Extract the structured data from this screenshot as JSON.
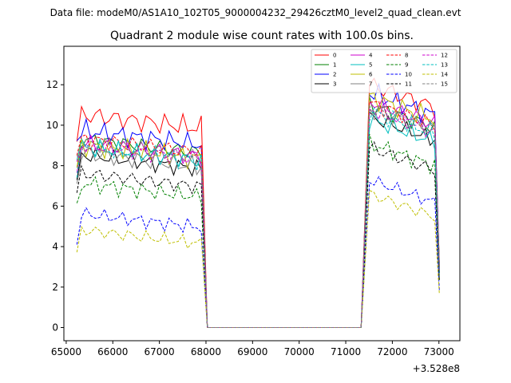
{
  "chart_data": {
    "type": "line",
    "suptitle": "Data file: modeM0/AS1A10_102T05_9000004232_29426cztM0_level2_quad_clean.evt",
    "title": "Quadrant 2 module wise count rates with 100.0s bins.",
    "xlabel": "",
    "ylabel": "",
    "x_offset_label": "+3.528e8",
    "xlim": [
      64950,
      73450
    ],
    "ylim": [
      -0.65,
      13.9
    ],
    "xticks": [
      65000,
      66000,
      67000,
      68000,
      69000,
      70000,
      71000,
      72000,
      73000
    ],
    "xtick_labels": [
      "65000",
      "66000",
      "67000",
      "68000",
      "69000",
      "70000",
      "71000",
      "72000",
      "73000"
    ],
    "yticks": [
      0,
      2,
      4,
      6,
      8,
      10,
      12
    ],
    "ytick_labels": [
      "0",
      "2",
      "4",
      "6",
      "8",
      "10",
      "12"
    ],
    "grid": false,
    "legend_location": "top-right",
    "legend_columns": 4,
    "segments": [
      {
        "start": 65230,
        "end": 67900,
        "n": 28
      },
      {
        "start": 71510,
        "end": 73010,
        "n": 16
      }
    ],
    "gap_x": [
      68030,
      71330
    ],
    "series": [
      {
        "name": "0",
        "color": "#ff0000",
        "dash": "solid",
        "levels": [
          10.2,
          11.3
        ],
        "jitter": 0.55
      },
      {
        "name": "1",
        "color": "#008000",
        "dash": "solid",
        "levels": [
          9.0,
          10.3
        ],
        "jitter": 0.45
      },
      {
        "name": "2",
        "color": "#0000ff",
        "dash": "solid",
        "levels": [
          9.4,
          10.9
        ],
        "jitter": 0.5
      },
      {
        "name": "3",
        "color": "#000000",
        "dash": "solid",
        "levels": [
          8.2,
          9.7
        ],
        "jitter": 0.4
      },
      {
        "name": "4",
        "color": "#cc00cc",
        "dash": "solid",
        "levels": [
          8.8,
          10.5
        ],
        "jitter": 0.5
      },
      {
        "name": "5",
        "color": "#00bfbf",
        "dash": "solid",
        "levels": [
          8.6,
          9.6
        ],
        "jitter": 0.45
      },
      {
        "name": "6",
        "color": "#bfbf00",
        "dash": "solid",
        "levels": [
          8.7,
          10.7
        ],
        "jitter": 0.5
      },
      {
        "name": "7",
        "color": "#808080",
        "dash": "solid",
        "levels": [
          8.3,
          10.2
        ],
        "jitter": 0.5
      },
      {
        "name": "8",
        "color": "#ff0000",
        "dash": "dashed",
        "levels": [
          9.0,
          10.4
        ],
        "jitter": 0.45
      },
      {
        "name": "9",
        "color": "#008000",
        "dash": "dashed",
        "levels": [
          6.8,
          8.4
        ],
        "jitter": 0.4
      },
      {
        "name": "10",
        "color": "#0000ff",
        "dash": "dashed",
        "levels": [
          5.3,
          6.6
        ],
        "jitter": 0.35
      },
      {
        "name": "11",
        "color": "#000000",
        "dash": "dashed",
        "levels": [
          7.3,
          8.2
        ],
        "jitter": 0.4
      },
      {
        "name": "12",
        "color": "#cc00cc",
        "dash": "dashed",
        "levels": [
          8.7,
          10.1
        ],
        "jitter": 0.45
      },
      {
        "name": "13",
        "color": "#00bfbf",
        "dash": "dashed",
        "levels": [
          8.6,
          10.0
        ],
        "jitter": 0.45
      },
      {
        "name": "14",
        "color": "#bfbf00",
        "dash": "dashed",
        "levels": [
          4.5,
          5.9
        ],
        "jitter": 0.35
      },
      {
        "name": "15",
        "color": "#808080",
        "dash": "dashed",
        "levels": [
          8.8,
          10.1
        ],
        "jitter": 0.45
      }
    ]
  }
}
